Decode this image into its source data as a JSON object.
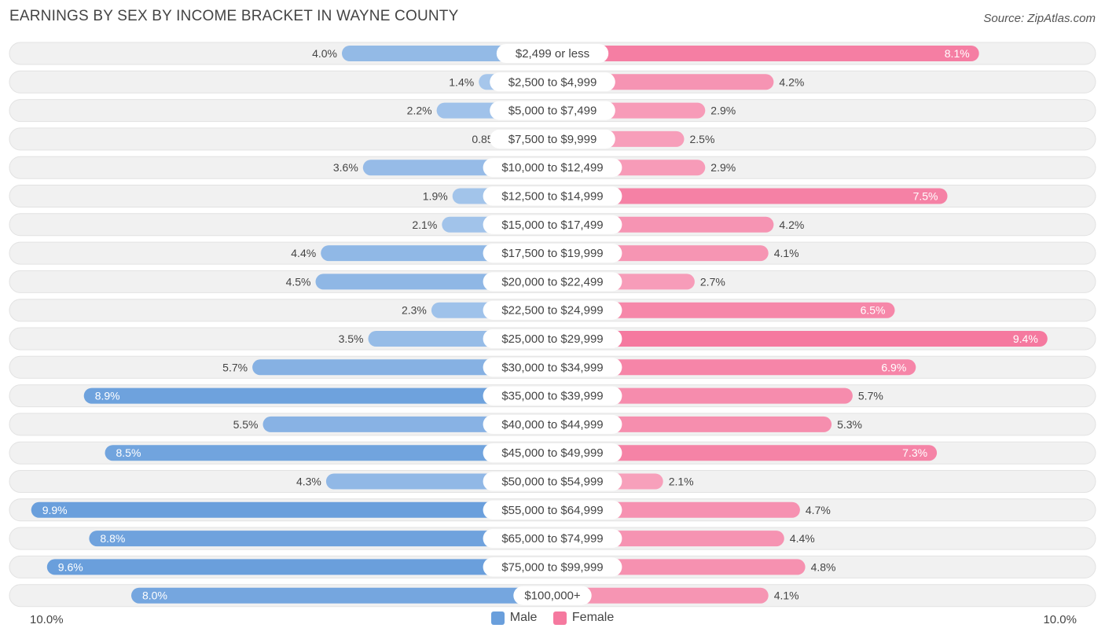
{
  "header": {
    "title": "EARNINGS BY SEX BY INCOME BRACKET IN WAYNE COUNTY",
    "source_prefix": "Source: ",
    "source_brand": "ZipAtlas.com"
  },
  "colors": {
    "male_strong": "#6a9fdc",
    "male_light": "#a9c8ec",
    "female_strong": "#f5799f",
    "female_light": "#f7a6c0",
    "row_bg": "#f1f1f1",
    "row_border": "#e2e2e2"
  },
  "chart_data": {
    "type": "bar",
    "orientation": "horizontal-diverging",
    "title": "EARNINGS BY SEX BY INCOME BRACKET IN WAYNE COUNTY",
    "categories": [
      "$2,499 or less",
      "$2,500 to $4,999",
      "$5,000 to $7,499",
      "$7,500 to $9,999",
      "$10,000 to $12,499",
      "$12,500 to $14,999",
      "$15,000 to $17,499",
      "$17,500 to $19,999",
      "$20,000 to $22,499",
      "$22,500 to $24,999",
      "$25,000 to $29,999",
      "$30,000 to $34,999",
      "$35,000 to $39,999",
      "$40,000 to $44,999",
      "$45,000 to $49,999",
      "$50,000 to $54,999",
      "$55,000 to $64,999",
      "$65,000 to $74,999",
      "$75,000 to $99,999",
      "$100,000+"
    ],
    "series": [
      {
        "name": "Male",
        "values": [
          4.0,
          1.4,
          2.2,
          0.85,
          3.6,
          1.9,
          2.1,
          4.4,
          4.5,
          2.3,
          3.5,
          5.7,
          8.9,
          5.5,
          8.5,
          4.3,
          9.9,
          8.8,
          9.6,
          8.0
        ],
        "labels": [
          "4.0%",
          "1.4%",
          "2.2%",
          "0.85%",
          "3.6%",
          "1.9%",
          "2.1%",
          "4.4%",
          "4.5%",
          "2.3%",
          "3.5%",
          "5.7%",
          "8.9%",
          "5.5%",
          "8.5%",
          "4.3%",
          "9.9%",
          "8.8%",
          "9.6%",
          "8.0%"
        ]
      },
      {
        "name": "Female",
        "values": [
          8.1,
          4.2,
          2.9,
          2.5,
          2.9,
          7.5,
          4.2,
          4.1,
          2.7,
          6.5,
          9.4,
          6.9,
          5.7,
          5.3,
          7.3,
          2.1,
          4.7,
          4.4,
          4.8,
          4.1
        ],
        "labels": [
          "8.1%",
          "4.2%",
          "2.9%",
          "2.5%",
          "2.9%",
          "7.5%",
          "4.2%",
          "4.1%",
          "2.7%",
          "6.5%",
          "9.4%",
          "6.9%",
          "5.7%",
          "5.3%",
          "7.3%",
          "2.1%",
          "4.7%",
          "4.4%",
          "4.8%",
          "4.1%"
        ]
      }
    ],
    "xlim": [
      -10.0,
      10.0
    ],
    "axis_left_label": "10.0%",
    "axis_right_label": "10.0%",
    "legend": [
      "Male",
      "Female"
    ],
    "legend_position": "bottom-center"
  }
}
